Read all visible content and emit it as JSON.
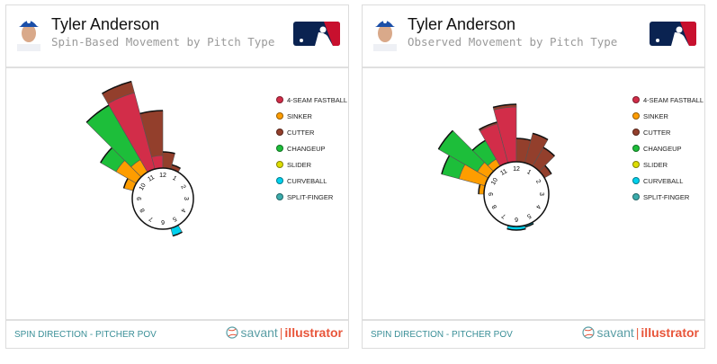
{
  "colors": {
    "4-SEAM FASTBALL": "#d22d49",
    "SINKER": "#fe9d00",
    "CUTTER": "#933f2c",
    "CHANGEUP": "#1dbe3a",
    "SLIDER": "#dddd00",
    "CURVEBALL": "#00d1ed",
    "SPLIT-FINGER": "#3bacac"
  },
  "legend": [
    "4-SEAM FASTBALL",
    "SINKER",
    "CUTTER",
    "CHANGEUP",
    "SLIDER",
    "CURVEBALL",
    "SPLIT-FINGER"
  ],
  "clock_labels": [
    "12",
    "1",
    "2",
    "3",
    "4",
    "5",
    "6",
    "7",
    "8",
    "9",
    "10",
    "11"
  ],
  "panels": [
    {
      "player": "Tyler Anderson",
      "subtitle": "Spin-Based Movement by Pitch Type",
      "footer": "SPIN DIRECTION - PITCHER POV",
      "brand": {
        "a": "savant",
        "b": "illustrator"
      }
    },
    {
      "player": "Tyler Anderson",
      "subtitle": "Observed Movement by Pitch Type",
      "footer": "SPIN DIRECTION - PITCHER POV",
      "brand": {
        "a": "savant",
        "b": "illustrator"
      }
    }
  ],
  "chart_data": [
    {
      "type": "polar-bar",
      "title": "Spin-Based Movement by Pitch Type",
      "note": "stacked relative frequency by clock direction (degrees clockwise from 12)",
      "bins": [
        {
          "from": -75,
          "to": -60,
          "stack": [
            [
              "SINKER",
              11
            ]
          ]
        },
        {
          "from": -60,
          "to": -45,
          "stack": [
            [
              "SINKER",
              26
            ],
            [
              "CHANGEUP",
              20
            ]
          ]
        },
        {
          "from": -45,
          "to": -30,
          "stack": [
            [
              "SINKER",
              16
            ],
            [
              "CHANGEUP",
              70
            ]
          ]
        },
        {
          "from": -30,
          "to": -15,
          "stack": [
            [
              "4-SEAM FASTBALL",
              88
            ],
            [
              "CUTTER",
              13
            ]
          ]
        },
        {
          "from": -15,
          "to": 0,
          "stack": [
            [
              "4-SEAM FASTBALL",
              14
            ],
            [
              "CUTTER",
              50
            ]
          ]
        },
        {
          "from": 0,
          "to": 15,
          "stack": [
            [
              "CUTTER",
              18
            ]
          ]
        },
        {
          "from": 15,
          "to": 30,
          "stack": [
            [
              "CUTTER",
              5
            ]
          ]
        },
        {
          "from": 150,
          "to": 165,
          "stack": [
            [
              "CURVEBALL",
              9
            ]
          ]
        }
      ]
    },
    {
      "type": "polar-bar",
      "title": "Observed Movement by Pitch Type",
      "note": "stacked relative frequency by clock direction (degrees clockwise from 12)",
      "bins": [
        {
          "from": -90,
          "to": -75,
          "stack": [
            [
              "SINKER",
              6
            ]
          ]
        },
        {
          "from": -75,
          "to": -60,
          "stack": [
            [
              "SINKER",
              30
            ],
            [
              "CHANGEUP",
              20
            ]
          ]
        },
        {
          "from": -60,
          "to": -45,
          "stack": [
            [
              "SINKER",
              14
            ],
            [
              "CHANGEUP",
              50
            ]
          ]
        },
        {
          "from": -45,
          "to": -30,
          "stack": [
            [
              "SINKER",
              9
            ],
            [
              "CHANGEUP",
              24
            ]
          ]
        },
        {
          "from": -30,
          "to": -15,
          "stack": [
            [
              "4-SEAM FASTBALL",
              45
            ],
            [
              "CUTTER",
              2
            ]
          ]
        },
        {
          "from": -15,
          "to": 0,
          "stack": [
            [
              "4-SEAM FASTBALL",
              61
            ],
            [
              "CUTTER",
              3
            ]
          ]
        },
        {
          "from": 0,
          "to": 15,
          "stack": [
            [
              "CUTTER",
              26
            ]
          ]
        },
        {
          "from": 15,
          "to": 30,
          "stack": [
            [
              "CUTTER",
              34
            ]
          ]
        },
        {
          "from": 30,
          "to": 45,
          "stack": [
            [
              "CUTTER",
              24
            ]
          ]
        },
        {
          "from": 45,
          "to": 60,
          "stack": [
            [
              "CUTTER",
              9
            ]
          ]
        },
        {
          "from": 150,
          "to": 165,
          "stack": [
            [
              "CURVEBALL",
              2
            ]
          ]
        },
        {
          "from": 165,
          "to": 195,
          "stack": [
            [
              "CURVEBALL",
              4
            ]
          ]
        }
      ]
    }
  ]
}
